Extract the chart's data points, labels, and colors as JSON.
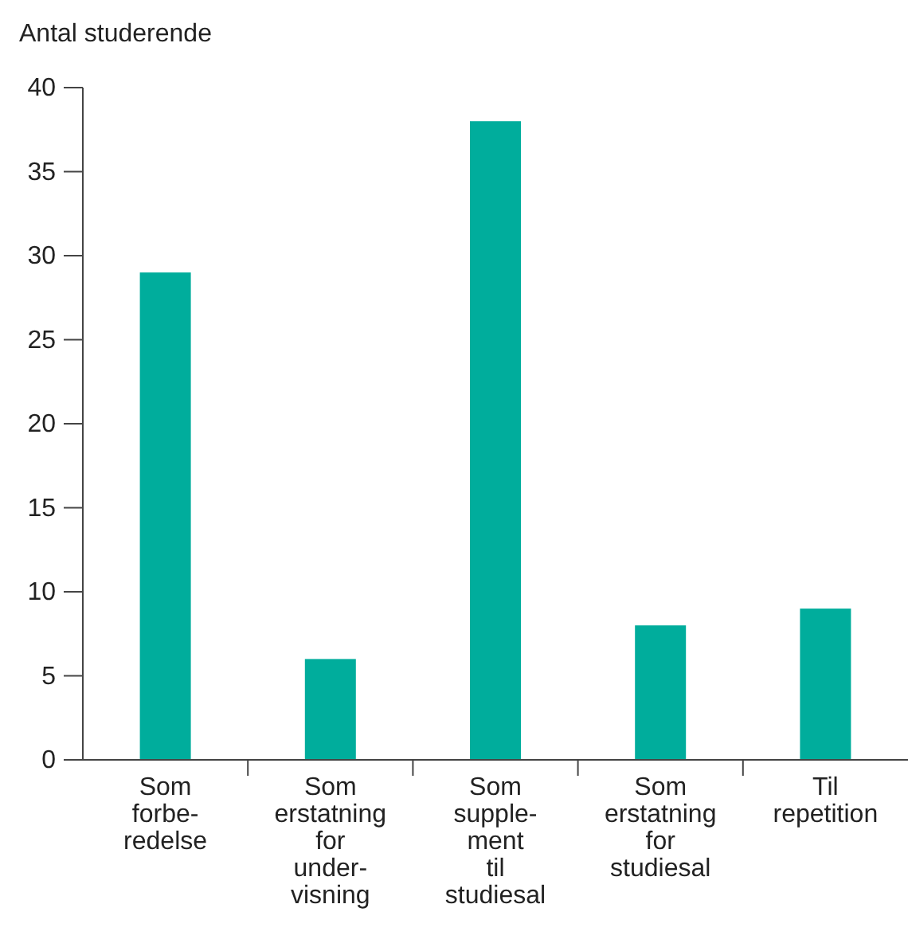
{
  "chart_data": {
    "type": "bar",
    "ylabel": "Antal studerende",
    "categories": [
      "Som\nforbe-\nredelse",
      "Som\nerstatning\nfor\nunder-\nvisning",
      "Som\nsupple-\nment\ntil\nstudiesal",
      "Som\nerstatning\nfor\nstudiesal",
      "Til\nrepetition"
    ],
    "values": [
      29,
      6,
      38,
      8,
      9
    ],
    "color": "#00ad9c",
    "ylim": [
      0,
      40
    ],
    "yticks": [
      0,
      5,
      10,
      15,
      20,
      25,
      30,
      35,
      40
    ]
  }
}
